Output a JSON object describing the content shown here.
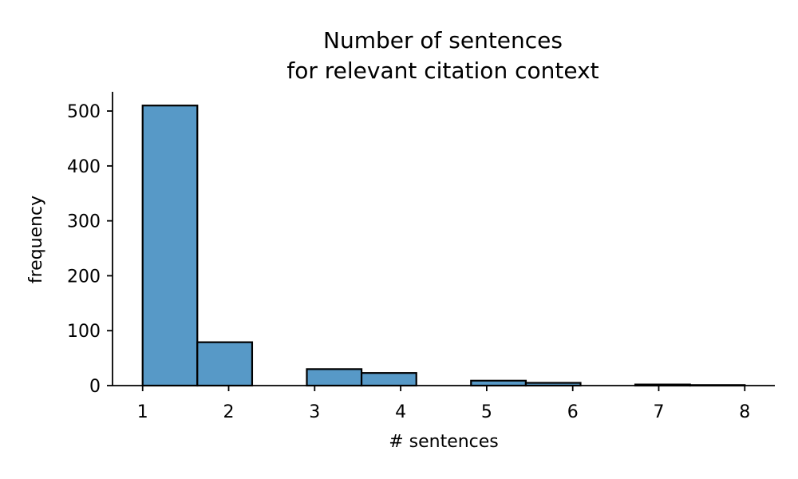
{
  "chart_data": {
    "type": "bar",
    "title": [
      "Number of sentences",
      "for relevant citation context"
    ],
    "xlabel": "# sentences",
    "ylabel": "frequency",
    "xlim": [
      0.65,
      8.35
    ],
    "ylim": [
      0,
      535
    ],
    "xticks": [
      1,
      2,
      3,
      4,
      5,
      6,
      7,
      8
    ],
    "yticks": [
      0,
      100,
      200,
      300,
      400,
      500
    ],
    "bin_edges": [
      1.0,
      1.636,
      2.273,
      2.909,
      3.545,
      4.182,
      4.818,
      5.455,
      6.091,
      6.727,
      7.364,
      8.0
    ],
    "values": [
      510,
      79,
      0,
      30,
      23,
      0,
      9,
      5,
      0,
      2,
      1
    ],
    "bar_color": "#5799c7",
    "edge_color": "#000000",
    "grid": false,
    "spines": [
      "left",
      "bottom"
    ]
  }
}
